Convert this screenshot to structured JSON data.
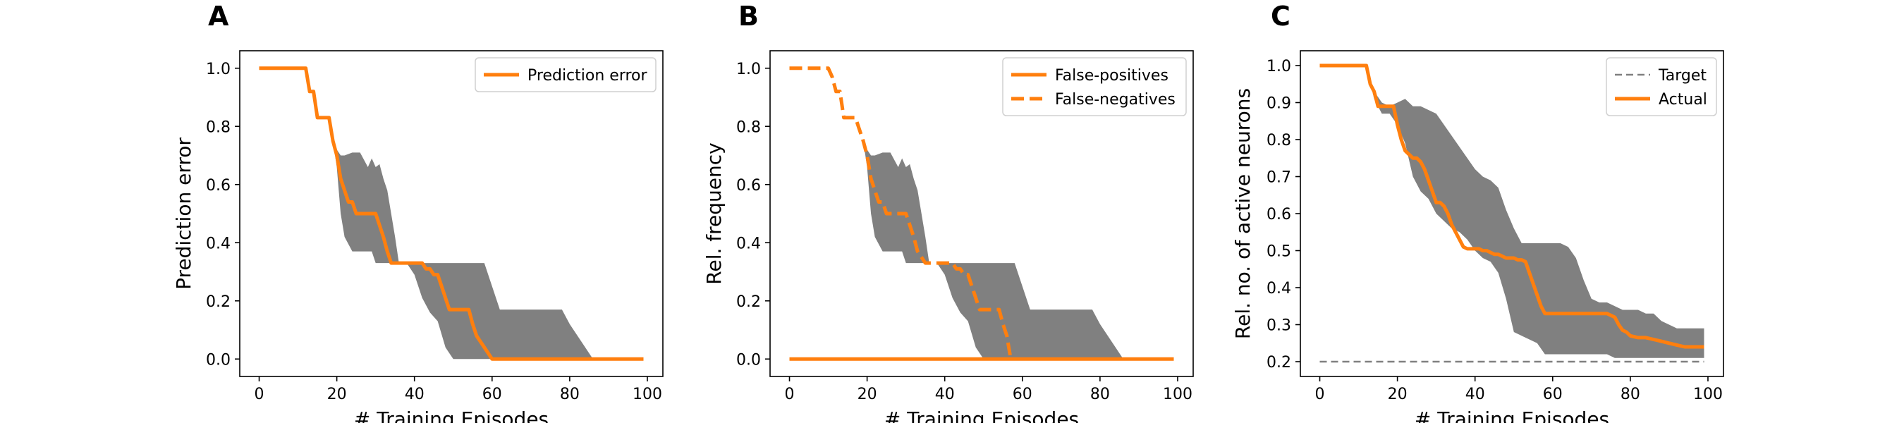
{
  "figure": {
    "colors": {
      "orange": "#ff7f0e",
      "band": "#808080",
      "target": "#808080",
      "axis": "#000000"
    }
  },
  "chart_data": [
    {
      "type": "line",
      "panel_letter": "A",
      "xlabel": "# Training Episodes",
      "ylabel": "Prediction error",
      "xlim": [
        -5,
        104
      ],
      "ylim": [
        -0.06,
        1.06
      ],
      "xticks": [
        "0",
        "20",
        "40",
        "60",
        "80",
        "100"
      ],
      "yticks": [
        "0.0",
        "0.2",
        "0.4",
        "0.6",
        "0.8",
        "1.0"
      ],
      "legend": {
        "position": "top-right"
      },
      "series": [
        {
          "name": "Prediction error",
          "style": "solid",
          "x": [
            0,
            12,
            13,
            14,
            15,
            16,
            17,
            18,
            19,
            20,
            21,
            22,
            23,
            24,
            25,
            26,
            27,
            28,
            29,
            30,
            31,
            32,
            33,
            34,
            35,
            36,
            37,
            38,
            39,
            40,
            41,
            42,
            43,
            44,
            45,
            46,
            47,
            48,
            49,
            50,
            51,
            52,
            53,
            54,
            55,
            56,
            57,
            58,
            59,
            60,
            61,
            62,
            99
          ],
          "y": [
            1.0,
            1.0,
            0.92,
            0.92,
            0.83,
            0.83,
            0.83,
            0.83,
            0.75,
            0.7,
            0.62,
            0.58,
            0.54,
            0.54,
            0.5,
            0.5,
            0.5,
            0.5,
            0.5,
            0.5,
            0.46,
            0.42,
            0.37,
            0.33,
            0.33,
            0.33,
            0.33,
            0.33,
            0.33,
            0.33,
            0.33,
            0.33,
            0.31,
            0.31,
            0.29,
            0.29,
            0.25,
            0.21,
            0.17,
            0.17,
            0.17,
            0.17,
            0.17,
            0.17,
            0.12,
            0.08,
            0.06,
            0.04,
            0.02,
            0.0,
            0.0,
            0.0,
            0.0
          ]
        }
      ],
      "band": {
        "x": [
          0,
          12,
          14,
          16,
          18,
          19,
          20,
          21,
          22,
          24,
          25,
          26,
          28,
          29,
          30,
          31,
          32,
          33,
          34,
          35,
          36,
          38,
          40,
          42,
          44,
          46,
          48,
          50,
          52,
          54,
          56,
          58,
          60,
          62,
          64,
          66,
          68,
          70,
          72,
          74,
          76,
          78,
          80,
          82,
          84,
          86,
          88,
          99
        ],
        "lower": [
          1.0,
          1.0,
          0.92,
          0.83,
          0.83,
          0.75,
          0.66,
          0.5,
          0.42,
          0.37,
          0.37,
          0.37,
          0.37,
          0.37,
          0.33,
          0.33,
          0.33,
          0.33,
          0.33,
          0.33,
          0.33,
          0.33,
          0.29,
          0.21,
          0.16,
          0.13,
          0.04,
          0.0,
          0.0,
          0.0,
          0.0,
          0.0,
          0.0,
          0.0,
          0.0,
          0.0,
          0.0,
          0.0,
          0.0,
          0.0,
          0.0,
          0.0,
          0.0,
          0.0,
          0.0,
          0.0,
          0.0,
          0.0
        ],
        "upper": [
          1.0,
          1.0,
          0.92,
          0.83,
          0.83,
          0.75,
          0.72,
          0.7,
          0.7,
          0.71,
          0.71,
          0.71,
          0.66,
          0.69,
          0.66,
          0.67,
          0.62,
          0.58,
          0.5,
          0.42,
          0.33,
          0.33,
          0.33,
          0.33,
          0.33,
          0.33,
          0.33,
          0.33,
          0.33,
          0.33,
          0.33,
          0.33,
          0.25,
          0.17,
          0.17,
          0.17,
          0.17,
          0.17,
          0.17,
          0.17,
          0.17,
          0.17,
          0.12,
          0.08,
          0.04,
          0.0,
          0.0,
          0.0
        ]
      }
    },
    {
      "type": "line",
      "panel_letter": "B",
      "xlabel": "# Training Episodes",
      "ylabel": "Rel. frequency",
      "xlim": [
        -5,
        104
      ],
      "ylim": [
        -0.06,
        1.06
      ],
      "xticks": [
        "0",
        "20",
        "40",
        "60",
        "80",
        "100"
      ],
      "yticks": [
        "0.0",
        "0.2",
        "0.4",
        "0.6",
        "0.8",
        "1.0"
      ],
      "legend": {
        "position": "top-right"
      },
      "series": [
        {
          "name": "False-positives",
          "style": "solid",
          "x": [
            0,
            99
          ],
          "y": [
            0.0,
            0.0
          ]
        },
        {
          "name": "False-negatives",
          "style": "dashed",
          "x": [
            0,
            10,
            11,
            12,
            13,
            14,
            15,
            16,
            17,
            18,
            19,
            20,
            21,
            22,
            23,
            24,
            25,
            26,
            27,
            28,
            29,
            30,
            31,
            32,
            33,
            34,
            35,
            36,
            37,
            38,
            39,
            40,
            41,
            42,
            43,
            44,
            45,
            46,
            47,
            48,
            49,
            50,
            51,
            52,
            53,
            54,
            55,
            56,
            57
          ],
          "y": [
            1.0,
            1.0,
            0.97,
            0.92,
            0.92,
            0.83,
            0.83,
            0.83,
            0.83,
            0.79,
            0.75,
            0.7,
            0.62,
            0.58,
            0.54,
            0.54,
            0.5,
            0.5,
            0.5,
            0.5,
            0.5,
            0.5,
            0.46,
            0.42,
            0.37,
            0.35,
            0.33,
            0.33,
            0.33,
            0.33,
            0.33,
            0.33,
            0.33,
            0.33,
            0.31,
            0.31,
            0.29,
            0.29,
            0.25,
            0.21,
            0.17,
            0.17,
            0.17,
            0.17,
            0.17,
            0.17,
            0.12,
            0.08,
            0.0
          ]
        }
      ],
      "band": {
        "x": [
          18,
          19,
          20,
          21,
          22,
          24,
          25,
          26,
          28,
          29,
          30,
          31,
          32,
          33,
          34,
          35,
          36,
          38,
          40,
          42,
          44,
          46,
          48,
          50,
          52,
          54,
          56,
          58,
          60,
          62,
          64,
          66,
          68,
          70,
          72,
          74,
          76,
          78,
          80,
          82,
          84,
          86,
          88,
          99
        ],
        "lower": [
          0.83,
          0.75,
          0.66,
          0.5,
          0.42,
          0.37,
          0.37,
          0.37,
          0.37,
          0.37,
          0.33,
          0.33,
          0.33,
          0.33,
          0.33,
          0.33,
          0.33,
          0.33,
          0.29,
          0.21,
          0.16,
          0.13,
          0.04,
          0.0,
          0.0,
          0.0,
          0.0,
          0.0,
          0.0,
          0.0,
          0.0,
          0.0,
          0.0,
          0.0,
          0.0,
          0.0,
          0.0,
          0.0,
          0.0,
          0.0,
          0.0,
          0.0,
          0.0,
          0.0
        ],
        "upper": [
          0.83,
          0.75,
          0.72,
          0.7,
          0.7,
          0.71,
          0.71,
          0.71,
          0.66,
          0.69,
          0.66,
          0.67,
          0.62,
          0.58,
          0.5,
          0.42,
          0.33,
          0.33,
          0.33,
          0.33,
          0.33,
          0.33,
          0.33,
          0.33,
          0.33,
          0.33,
          0.33,
          0.33,
          0.25,
          0.17,
          0.17,
          0.17,
          0.17,
          0.17,
          0.17,
          0.17,
          0.17,
          0.17,
          0.12,
          0.08,
          0.04,
          0.0,
          0.0,
          0.0
        ]
      }
    },
    {
      "type": "line",
      "panel_letter": "C",
      "xlabel": "# Training Episodes",
      "ylabel": "Rel. no. of active neurons",
      "xlim": [
        -5,
        104
      ],
      "ylim": [
        0.16,
        1.04
      ],
      "xticks": [
        "0",
        "20",
        "40",
        "60",
        "80",
        "100"
      ],
      "yticks": [
        "0.2",
        "0.3",
        "0.4",
        "0.5",
        "0.6",
        "0.7",
        "0.8",
        "0.9",
        "1.0"
      ],
      "legend": {
        "position": "top-right"
      },
      "series": [
        {
          "name": "Target",
          "style": "dashed-thin",
          "x": [
            0,
            99
          ],
          "y": [
            0.2,
            0.2
          ]
        },
        {
          "name": "Actual",
          "style": "solid",
          "x": [
            0,
            12,
            13,
            14,
            15,
            16,
            17,
            18,
            19,
            20,
            21,
            22,
            23,
            24,
            25,
            26,
            27,
            28,
            29,
            30,
            31,
            32,
            33,
            34,
            35,
            36,
            37,
            38,
            39,
            40,
            41,
            42,
            43,
            44,
            45,
            46,
            47,
            48,
            49,
            50,
            51,
            52,
            53,
            54,
            55,
            56,
            57,
            58,
            60,
            62,
            64,
            66,
            68,
            70,
            72,
            74,
            76,
            77,
            78,
            79,
            80,
            82,
            84,
            86,
            88,
            90,
            92,
            94,
            96,
            99
          ],
          "y": [
            1.0,
            1.0,
            0.95,
            0.93,
            0.89,
            0.89,
            0.89,
            0.89,
            0.89,
            0.84,
            0.8,
            0.77,
            0.76,
            0.75,
            0.75,
            0.74,
            0.72,
            0.69,
            0.66,
            0.63,
            0.63,
            0.62,
            0.6,
            0.57,
            0.55,
            0.53,
            0.51,
            0.505,
            0.505,
            0.505,
            0.505,
            0.5,
            0.5,
            0.495,
            0.49,
            0.49,
            0.485,
            0.48,
            0.48,
            0.48,
            0.475,
            0.475,
            0.47,
            0.44,
            0.41,
            0.38,
            0.35,
            0.33,
            0.33,
            0.33,
            0.33,
            0.33,
            0.33,
            0.33,
            0.33,
            0.33,
            0.32,
            0.3,
            0.285,
            0.28,
            0.27,
            0.265,
            0.265,
            0.26,
            0.255,
            0.25,
            0.245,
            0.24,
            0.24,
            0.24
          ]
        }
      ],
      "band": {
        "x": [
          0,
          12,
          14,
          16,
          18,
          20,
          22,
          24,
          26,
          28,
          30,
          32,
          34,
          36,
          38,
          40,
          42,
          44,
          46,
          48,
          50,
          52,
          54,
          56,
          58,
          60,
          62,
          64,
          66,
          68,
          70,
          72,
          74,
          76,
          78,
          80,
          82,
          84,
          86,
          88,
          90,
          92,
          94,
          96,
          99
        ],
        "lower": [
          1.0,
          1.0,
          0.91,
          0.87,
          0.87,
          0.84,
          0.79,
          0.7,
          0.66,
          0.64,
          0.6,
          0.58,
          0.56,
          0.55,
          0.53,
          0.5,
          0.48,
          0.47,
          0.44,
          0.37,
          0.28,
          0.27,
          0.26,
          0.25,
          0.22,
          0.22,
          0.22,
          0.22,
          0.22,
          0.22,
          0.22,
          0.22,
          0.22,
          0.21,
          0.21,
          0.21,
          0.21,
          0.21,
          0.21,
          0.21,
          0.21,
          0.21,
          0.21,
          0.21,
          0.21
        ],
        "upper": [
          1.0,
          1.0,
          0.93,
          0.9,
          0.89,
          0.9,
          0.91,
          0.89,
          0.89,
          0.88,
          0.87,
          0.84,
          0.81,
          0.78,
          0.75,
          0.72,
          0.7,
          0.69,
          0.67,
          0.61,
          0.56,
          0.52,
          0.52,
          0.52,
          0.52,
          0.52,
          0.52,
          0.51,
          0.48,
          0.42,
          0.37,
          0.36,
          0.36,
          0.35,
          0.34,
          0.34,
          0.34,
          0.33,
          0.33,
          0.31,
          0.3,
          0.29,
          0.29,
          0.29,
          0.29
        ]
      }
    }
  ]
}
